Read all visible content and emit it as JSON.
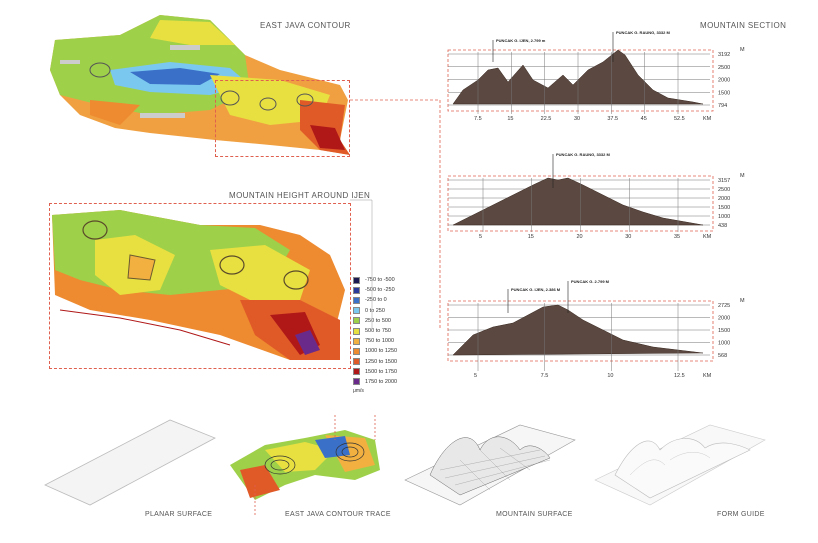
{
  "titles": {
    "contour": "EAST JAVA CONTOUR",
    "height": "MOUNTAIN HEIGHT AROUND IJEN",
    "section": "MOUNTAIN SECTION"
  },
  "legend": {
    "items": [
      {
        "label": "-750 to -500",
        "color": "#1a1a50"
      },
      {
        "label": "-500 to -250",
        "color": "#2a3a9a"
      },
      {
        "label": "-250 to 0",
        "color": "#3a70c8"
      },
      {
        "label": "0 to 250",
        "color": "#7ac8f0"
      },
      {
        "label": "250 to 500",
        "color": "#9ed04a"
      },
      {
        "label": "500 to 750",
        "color": "#e8e040"
      },
      {
        "label": "750 to 1000",
        "color": "#f2b040"
      },
      {
        "label": "1000 to 1250",
        "color": "#ee8a30"
      },
      {
        "label": "1250 to 1500",
        "color": "#e05a28"
      },
      {
        "label": "1500 to 1750",
        "color": "#b01818"
      },
      {
        "label": "1750 to 2000",
        "color": "#6a2a8a"
      }
    ],
    "unit": "μm/s"
  },
  "sections": [
    {
      "unit": "M",
      "km": "KM",
      "y_labels": [
        "3192",
        "2500",
        "2000",
        "1500",
        "794"
      ],
      "x_labels": [
        "7.5",
        "15",
        "22.5",
        "30",
        "37.5",
        "45",
        "52.5"
      ],
      "peaks": [
        "PUNCAK G. IJEN, 2.799 m",
        "PUNCAK G. RAUNG, 3332 M"
      ]
    },
    {
      "unit": "M",
      "km": "KM",
      "y_labels": [
        "3157",
        "2500",
        "2000",
        "1500",
        "1000",
        "438"
      ],
      "x_labels": [
        "5",
        "15",
        "20",
        "30",
        "35"
      ],
      "peaks": [
        "PUNCAK G. RAUNG, 3332 M"
      ]
    },
    {
      "unit": "M",
      "km": "KM",
      "y_labels": [
        "2725",
        "2000",
        "1500",
        "1000",
        "568"
      ],
      "x_labels": [
        "5",
        "7.5",
        "10",
        "12.5"
      ],
      "peaks": [
        "PUNCAK G. IJEN, 2.386 M",
        "PUNCAK G. 2.799 M"
      ]
    }
  ],
  "steps": [
    "PLANAR SURFACE",
    "EAST JAVA CONTOUR TRACE",
    "MOUNTAIN SURFACE",
    "FORM GUIDE"
  ]
}
